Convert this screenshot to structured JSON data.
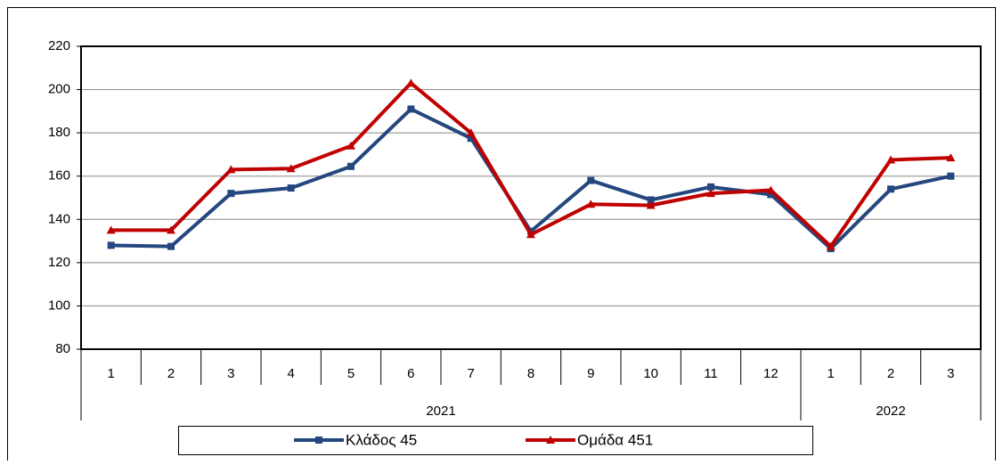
{
  "chart_data": {
    "type": "line",
    "groups": [
      {
        "label": "2021",
        "categories": [
          "1",
          "2",
          "3",
          "4",
          "5",
          "6",
          "7",
          "8",
          "9",
          "10",
          "11",
          "12"
        ]
      },
      {
        "label": "2022",
        "categories": [
          "1",
          "2",
          "3"
        ]
      }
    ],
    "series": [
      {
        "name": "Κλάδος 45",
        "color": "#24477f",
        "marker": "square",
        "values": [
          128,
          127.5,
          152,
          154.5,
          164.5,
          191,
          177.5,
          134.5,
          158,
          149,
          155,
          151.5,
          126.5,
          154,
          160
        ]
      },
      {
        "name": "Ομάδα 451",
        "color": "#c00000",
        "marker": "triangle",
        "values": [
          135,
          135,
          163,
          163.5,
          174,
          203,
          180,
          133,
          147,
          146.5,
          152,
          153.5,
          127.5,
          167.5,
          168.5
        ]
      }
    ],
    "ylim": [
      80,
      220
    ],
    "yticks": [
      80,
      100,
      120,
      140,
      160,
      180,
      200,
      220
    ],
    "grid": true
  }
}
